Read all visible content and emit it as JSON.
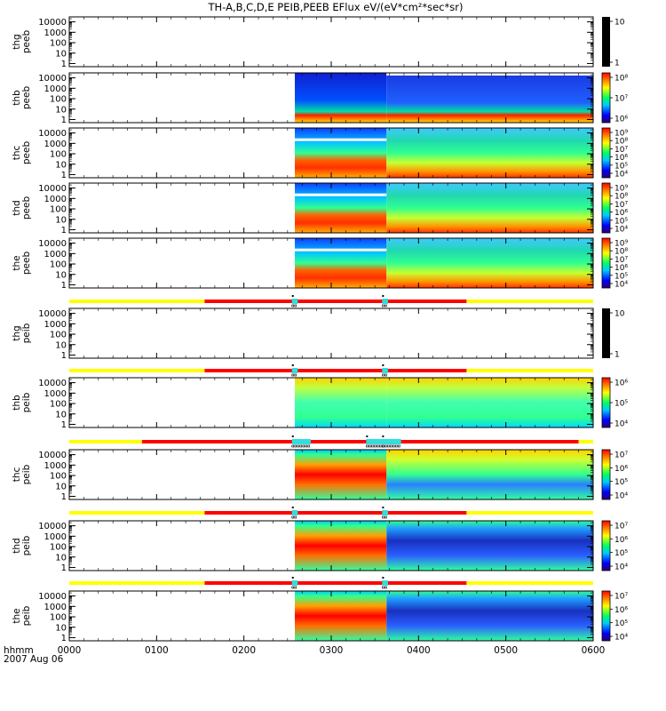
{
  "title": "TH-A,B,C,D,E PEIB,PEEB EFlux eV/(eV*cm²*sec*sr)",
  "colors": {
    "axis": "#000000",
    "mode_slow": "#ffff00",
    "mode_fast": "#ff0000",
    "mode_burst": "#33dddd",
    "mode_tick": "#000000",
    "empty_bar": "#000000"
  },
  "chart_data": [
    {
      "type": "heatmap",
      "probe": "thg",
      "product": "peeb",
      "ylabel": [
        "thg",
        "peeb"
      ],
      "ylim": [
        0.5,
        30000
      ],
      "ytick_labels": [
        "10000",
        "1000",
        "100",
        "10",
        "1"
      ],
      "cbar_labels": [
        "10",
        "1"
      ],
      "cbar_style": "empty",
      "data_start": "",
      "data_split": "",
      "has_data": false
    },
    {
      "type": "heatmap",
      "probe": "thb",
      "product": "peeb",
      "ylabel": [
        "thb",
        "peeb"
      ],
      "ylim": [
        0.5,
        30000
      ],
      "ytick_labels": [
        "10000",
        "1000",
        "100",
        "10",
        "1"
      ],
      "cbar_labels": [
        "10⁸",
        "10⁷",
        "10⁶"
      ],
      "cbar_style": "rainbow",
      "data_start": "0235",
      "data_split": "0338",
      "has_data": true
    },
    {
      "type": "heatmap",
      "probe": "thc",
      "product": "peeb",
      "ylabel": [
        "thc",
        "peeb"
      ],
      "ylim": [
        0.5,
        30000
      ],
      "ytick_labels": [
        "10000",
        "1000",
        "100",
        "10",
        "1"
      ],
      "cbar_labels": [
        "10⁹",
        "10⁸",
        "10⁷",
        "10⁶",
        "10⁵",
        "10⁴"
      ],
      "cbar_style": "rainbow",
      "data_start": "0235",
      "data_split": "0338",
      "has_data": true
    },
    {
      "type": "heatmap",
      "probe": "thd",
      "product": "peeb",
      "ylabel": [
        "thd",
        "peeb"
      ],
      "ylim": [
        0.5,
        30000
      ],
      "ytick_labels": [
        "10000",
        "1000",
        "100",
        "10",
        "1"
      ],
      "cbar_labels": [
        "10⁹",
        "10⁸",
        "10⁷",
        "10⁶",
        "10⁵",
        "10⁴"
      ],
      "cbar_style": "rainbow",
      "data_start": "0235",
      "data_split": "0338",
      "has_data": true
    },
    {
      "type": "heatmap",
      "probe": "the",
      "product": "peeb",
      "ylabel": [
        "the",
        "peeb"
      ],
      "ylim": [
        0.5,
        30000
      ],
      "ytick_labels": [
        "10000",
        "1000",
        "100",
        "10",
        "1"
      ],
      "cbar_labels": [
        "10⁹",
        "10⁸",
        "10⁷",
        "10⁶",
        "10⁵",
        "10⁴"
      ],
      "cbar_style": "rainbow",
      "data_start": "0235",
      "data_split": "0338",
      "has_data": true
    },
    {
      "type": "heatmap",
      "probe": "thg",
      "product": "peib",
      "ylabel": [
        "thg",
        "peib"
      ],
      "ylim": [
        0.5,
        30000
      ],
      "ytick_labels": [
        "10000",
        "1000",
        "100",
        "10",
        "1"
      ],
      "cbar_labels": [
        "10",
        "1"
      ],
      "cbar_style": "empty",
      "data_start": "",
      "data_split": "",
      "has_data": false
    },
    {
      "type": "heatmap",
      "probe": "thb",
      "product": "peib",
      "ylabel": [
        "thb",
        "peib"
      ],
      "ylim": [
        0.5,
        30000
      ],
      "ytick_labels": [
        "10000",
        "1000",
        "100",
        "10",
        "1"
      ],
      "cbar_labels": [
        "10⁶",
        "10⁵",
        "10⁴"
      ],
      "cbar_style": "rainbow",
      "data_start": "0235",
      "data_split": "0338",
      "has_data": true
    },
    {
      "type": "heatmap",
      "probe": "thc",
      "product": "peib",
      "ylabel": [
        "thc",
        "peib"
      ],
      "ylim": [
        0.5,
        30000
      ],
      "ytick_labels": [
        "10000",
        "1000",
        "100",
        "10",
        "1"
      ],
      "cbar_labels": [
        "10⁷",
        "10⁶",
        "10⁵",
        "10⁴"
      ],
      "cbar_style": "rainbow",
      "data_start": "0235",
      "data_split": "0338",
      "has_data": true
    },
    {
      "type": "heatmap",
      "probe": "thd",
      "product": "peib",
      "ylabel": [
        "thd",
        "peib"
      ],
      "ylim": [
        0.5,
        30000
      ],
      "ytick_labels": [
        "10000",
        "1000",
        "100",
        "10",
        "1"
      ],
      "cbar_labels": [
        "10⁷",
        "10⁶",
        "10⁵",
        "10⁴"
      ],
      "cbar_style": "rainbow",
      "data_start": "0235",
      "data_split": "0338",
      "has_data": true
    },
    {
      "type": "heatmap",
      "probe": "the",
      "product": "peib",
      "ylabel": [
        "the",
        "peib"
      ],
      "ylim": [
        0.5,
        30000
      ],
      "ytick_labels": [
        "10000",
        "1000",
        "100",
        "10",
        "1"
      ],
      "cbar_labels": [
        "10⁷",
        "10⁶",
        "10⁵",
        "10⁴"
      ],
      "cbar_style": "rainbow",
      "data_start": "0235",
      "data_split": "0338",
      "has_data": true
    }
  ],
  "mode_bars": [
    {
      "segments": [
        {
          "from": "0000",
          "to": "0133",
          "mode": "slow"
        },
        {
          "from": "0133",
          "to": "0433",
          "mode": "fast"
        },
        {
          "from": "0433",
          "to": "0600",
          "mode": "slow"
        }
      ],
      "burst": [
        {
          "from": "0233",
          "to": "0237"
        },
        {
          "from": "0335",
          "to": "0339"
        }
      ]
    },
    {
      "segments": [
        {
          "from": "0000",
          "to": "0133",
          "mode": "slow"
        },
        {
          "from": "0133",
          "to": "0433",
          "mode": "fast"
        },
        {
          "from": "0433",
          "to": "0600",
          "mode": "slow"
        }
      ],
      "burst": [
        {
          "from": "0233",
          "to": "0237"
        },
        {
          "from": "0335",
          "to": "0339"
        }
      ]
    },
    {
      "segments": [
        {
          "from": "0000",
          "to": "0050",
          "mode": "slow"
        },
        {
          "from": "0050",
          "to": "0550",
          "mode": "fast"
        },
        {
          "from": "0550",
          "to": "0600",
          "mode": "slow"
        }
      ],
      "burst": [
        {
          "from": "0233",
          "to": "0246"
        },
        {
          "from": "0284",
          "to": "0298"
        },
        {
          "from": "0335",
          "to": "0348"
        }
      ]
    },
    {
      "segments": [
        {
          "from": "0000",
          "to": "0133",
          "mode": "slow"
        },
        {
          "from": "0133",
          "to": "0433",
          "mode": "fast"
        },
        {
          "from": "0433",
          "to": "0600",
          "mode": "slow"
        }
      ],
      "burst": [
        {
          "from": "0233",
          "to": "0237"
        },
        {
          "from": "0335",
          "to": "0339"
        }
      ]
    },
    {
      "segments": [
        {
          "from": "0000",
          "to": "0133",
          "mode": "slow"
        },
        {
          "from": "0133",
          "to": "0433",
          "mode": "fast"
        },
        {
          "from": "0433",
          "to": "0600",
          "mode": "slow"
        }
      ],
      "burst": [
        {
          "from": "0233",
          "to": "0237"
        },
        {
          "from": "0335",
          "to": "0339"
        }
      ]
    }
  ],
  "x_axis": {
    "ticks": [
      "0000",
      "0100",
      "0200",
      "0300",
      "0400",
      "0500",
      "0600"
    ],
    "label_line1": "hhmm",
    "label_line2": "2007 Aug 06"
  }
}
